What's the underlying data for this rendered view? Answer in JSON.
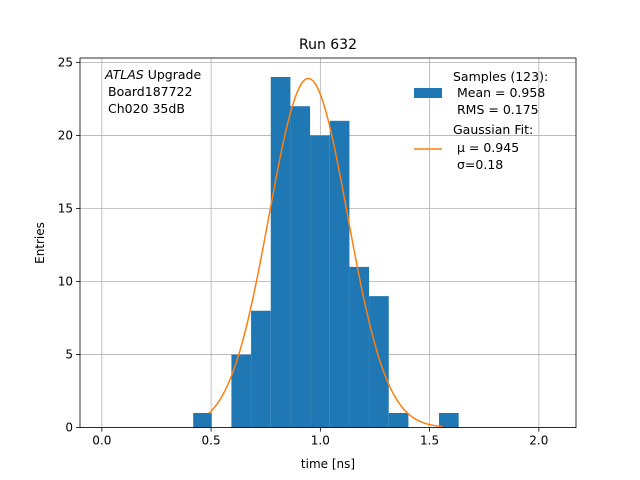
{
  "chart_data": {
    "type": "bar",
    "title": "Run 632",
    "xlabel": "time [ns]",
    "ylabel": "Entries",
    "xlim": [
      -0.1,
      2.17
    ],
    "ylim": [
      0,
      25.3
    ],
    "xticks": [
      "0.0",
      "0.5",
      "1.0",
      "1.5",
      "2.0"
    ],
    "yticks": [
      "0",
      "5",
      "10",
      "15",
      "20",
      "25"
    ],
    "grid": true,
    "legend_position": "top-right",
    "annotation": {
      "italic_word": "ATLAS",
      "rest_of_line": "Upgrade",
      "lines": [
        "Board187722",
        "Ch020 35dB"
      ]
    },
    "histogram": {
      "name": "Samples (123):",
      "stats": [
        "Mean = 0.958",
        "RMS = 0.175"
      ],
      "color": "#1f77b4",
      "bins": [
        {
          "x0": 0.418,
          "x1": 0.503,
          "count": 1
        },
        {
          "x0": 0.593,
          "x1": 0.683,
          "count": 5
        },
        {
          "x0": 0.683,
          "x1": 0.773,
          "count": 8
        },
        {
          "x0": 0.773,
          "x1": 0.863,
          "count": 24
        },
        {
          "x0": 0.863,
          "x1": 0.953,
          "count": 22
        },
        {
          "x0": 0.953,
          "x1": 1.043,
          "count": 20
        },
        {
          "x0": 1.043,
          "x1": 1.133,
          "count": 21
        },
        {
          "x0": 1.133,
          "x1": 1.223,
          "count": 11
        },
        {
          "x0": 1.223,
          "x1": 1.313,
          "count": 9
        },
        {
          "x0": 1.313,
          "x1": 1.403,
          "count": 1
        },
        {
          "x0": 1.543,
          "x1": 1.633,
          "count": 1
        }
      ]
    },
    "fit": {
      "name": "Gaussian Fit:",
      "params": [
        "μ = 0.945",
        "σ=0.18"
      ],
      "color": "#ff7f0e",
      "mu": 0.945,
      "sigma": 0.18,
      "amplitude": 23.9,
      "x_range": [
        0.49,
        1.56
      ]
    }
  }
}
